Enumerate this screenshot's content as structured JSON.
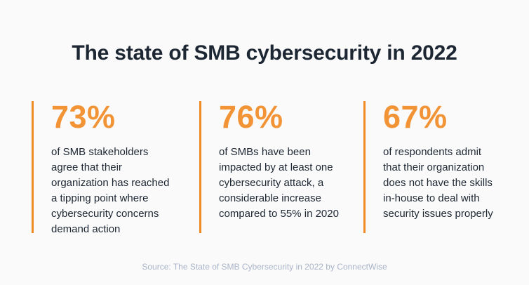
{
  "title": "The state of SMB cybersecurity in 2022",
  "stats": [
    {
      "value": "73%",
      "text": "of SMB stakeholders\nagree that their\norganization has reached\na tipping point where\ncybersecurity concerns\ndemand action"
    },
    {
      "value": "76%",
      "text": "of SMBs have been\nimpacted by at least one\ncybersecurity attack, a\nconsiderable increase\ncompared to 55% in 2020"
    },
    {
      "value": "67%",
      "text": "of respondents admit\nthat their organization\ndoes not have the skills\nin-house to deal with\nsecurity issues properly"
    }
  ],
  "source": "Source: The State of SMB Cybersecurity in 2022 by ConnectWise",
  "colors": {
    "accent": "#f29335",
    "divider": "#f08a24",
    "text": "#1d2733",
    "source_text": "#a9b4c8",
    "background": "#fafafa"
  }
}
